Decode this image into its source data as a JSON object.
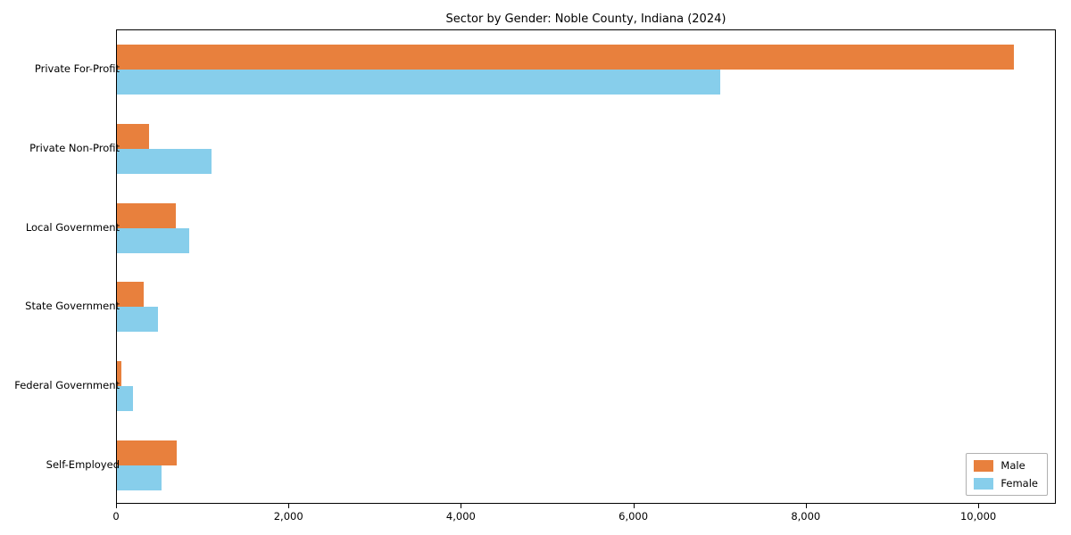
{
  "chart_data": {
    "type": "bar",
    "orientation": "horizontal",
    "title": "Sector by Gender: Noble County, Indiana (2024)",
    "categories": [
      "Private For-Profit",
      "Private Non-Profit",
      "Local Government",
      "State Government",
      "Federal Government",
      "Self-Employed"
    ],
    "series": [
      {
        "name": "Male",
        "color": "#e8803d",
        "values": [
          10400,
          370,
          680,
          310,
          50,
          690
        ]
      },
      {
        "name": "Female",
        "color": "#87ceeb",
        "values": [
          7000,
          1100,
          840,
          480,
          190,
          520
        ]
      }
    ],
    "xlim": [
      0,
      10900
    ],
    "x_ticks": [
      0,
      2000,
      4000,
      6000,
      8000,
      10000
    ],
    "x_tick_labels": [
      "0",
      "2,000",
      "4,000",
      "6,000",
      "8,000",
      "10,000"
    ],
    "xlabel": "",
    "ylabel": "",
    "grid": false,
    "legend_position": "lower right",
    "legend_entries": [
      "Male",
      "Female"
    ]
  }
}
